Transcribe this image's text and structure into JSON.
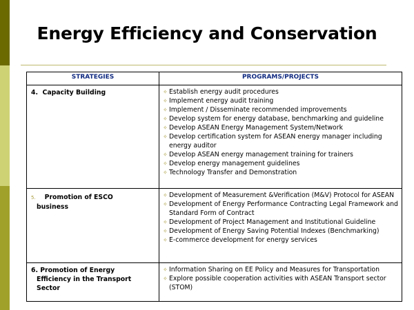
{
  "slide": {
    "title": "Energy Efficiency and Conservation"
  },
  "table": {
    "headers": [
      "STRATEGIES",
      "PROGRAMS/PROJECTS"
    ],
    "rows": [
      {
        "strategy_num": "4.",
        "strategy": "Capacity Building",
        "programs": [
          "Establish energy audit procedures",
          "Implement energy audit training",
          "Implement / Disseminate recommended improvements",
          "Develop system for energy database, benchmarking and guideline",
          "Develop ASEAN Energy Management System/Network",
          "Develop certification system for ASEAN energy manager including energy auditor",
          "Develop ASEAN energy management training for trainers",
          "Develop energy management guidelines",
          "Technology Transfer and Demonstration"
        ]
      },
      {
        "strategy_num": "5.",
        "strategy_line1": "Promotion of ESCO",
        "strategy_line2": "business",
        "programs": [
          "Development of Measurement &Verification (M&V) Protocol for ASEAN",
          "Development of Energy Performance Contracting Legal Framework and Standard Form of Contract",
          "Development of Project Management and Institutional Guideline",
          "Development of Energy Saving Potential Indexes (Benchmarking)",
          "E-commerce development for energy services"
        ]
      },
      {
        "strategy_line1": "6. Promotion of Energy",
        "strategy_line2": "Efficiency in the Transport",
        "strategy_line3": "Sector",
        "programs": [
          "Information Sharing on EE Policy and Measures for Transportation",
          "Explore possible cooperation activities with ASEAN Transport sector (STOM)"
        ]
      }
    ]
  },
  "colors": {
    "sidebar_top": "#6b6a00",
    "sidebar_mid": "#cfd274",
    "sidebar_bottom": "#a0a12a",
    "header_text": "#102a80",
    "bullet": "#a89a3a"
  },
  "icons": {
    "bullet": "diamond-bullet-icon"
  }
}
